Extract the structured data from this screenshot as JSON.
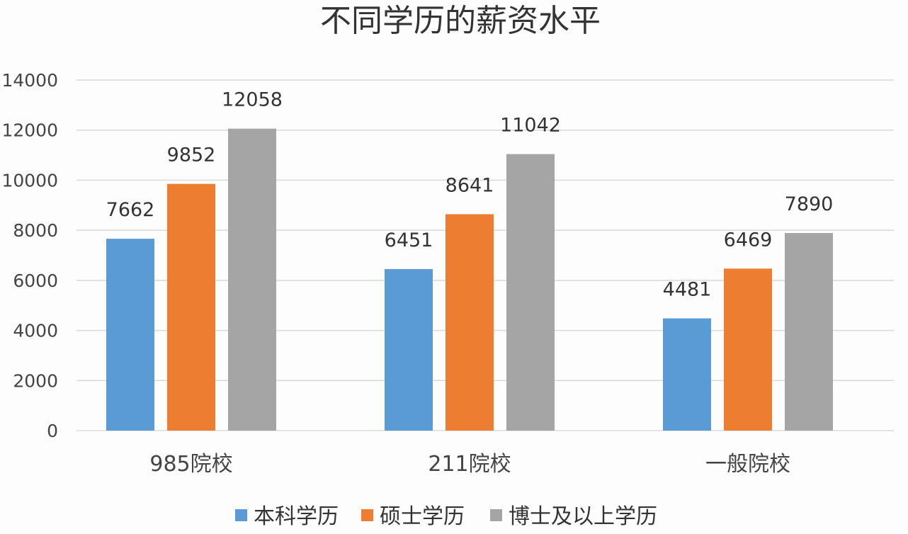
{
  "chart_data": {
    "type": "bar",
    "title": "不同学历的薪资水平",
    "xlabel": "",
    "ylabel": "",
    "categories": [
      "985院校",
      "211院校",
      "一般院校"
    ],
    "series": [
      {
        "name": "本科学历",
        "color": "#5b9bd5",
        "values": [
          7662,
          6451,
          4481
        ]
      },
      {
        "name": "硕士学历",
        "color": "#ed7d31",
        "values": [
          9852,
          8641,
          6469
        ]
      },
      {
        "name": "博士及以上学历",
        "color": "#a5a5a5",
        "values": [
          12058,
          11042,
          7890
        ]
      }
    ],
    "ylim": [
      0,
      14000
    ],
    "yticks": [
      0,
      2000,
      4000,
      6000,
      8000,
      10000,
      12000,
      14000
    ],
    "ytick_labels": [
      "0",
      "2000",
      "4000",
      "6000",
      "8000",
      "10000",
      "12000",
      "14000"
    ],
    "grid": true,
    "legend_position": "bottom",
    "data_labels": true
  }
}
